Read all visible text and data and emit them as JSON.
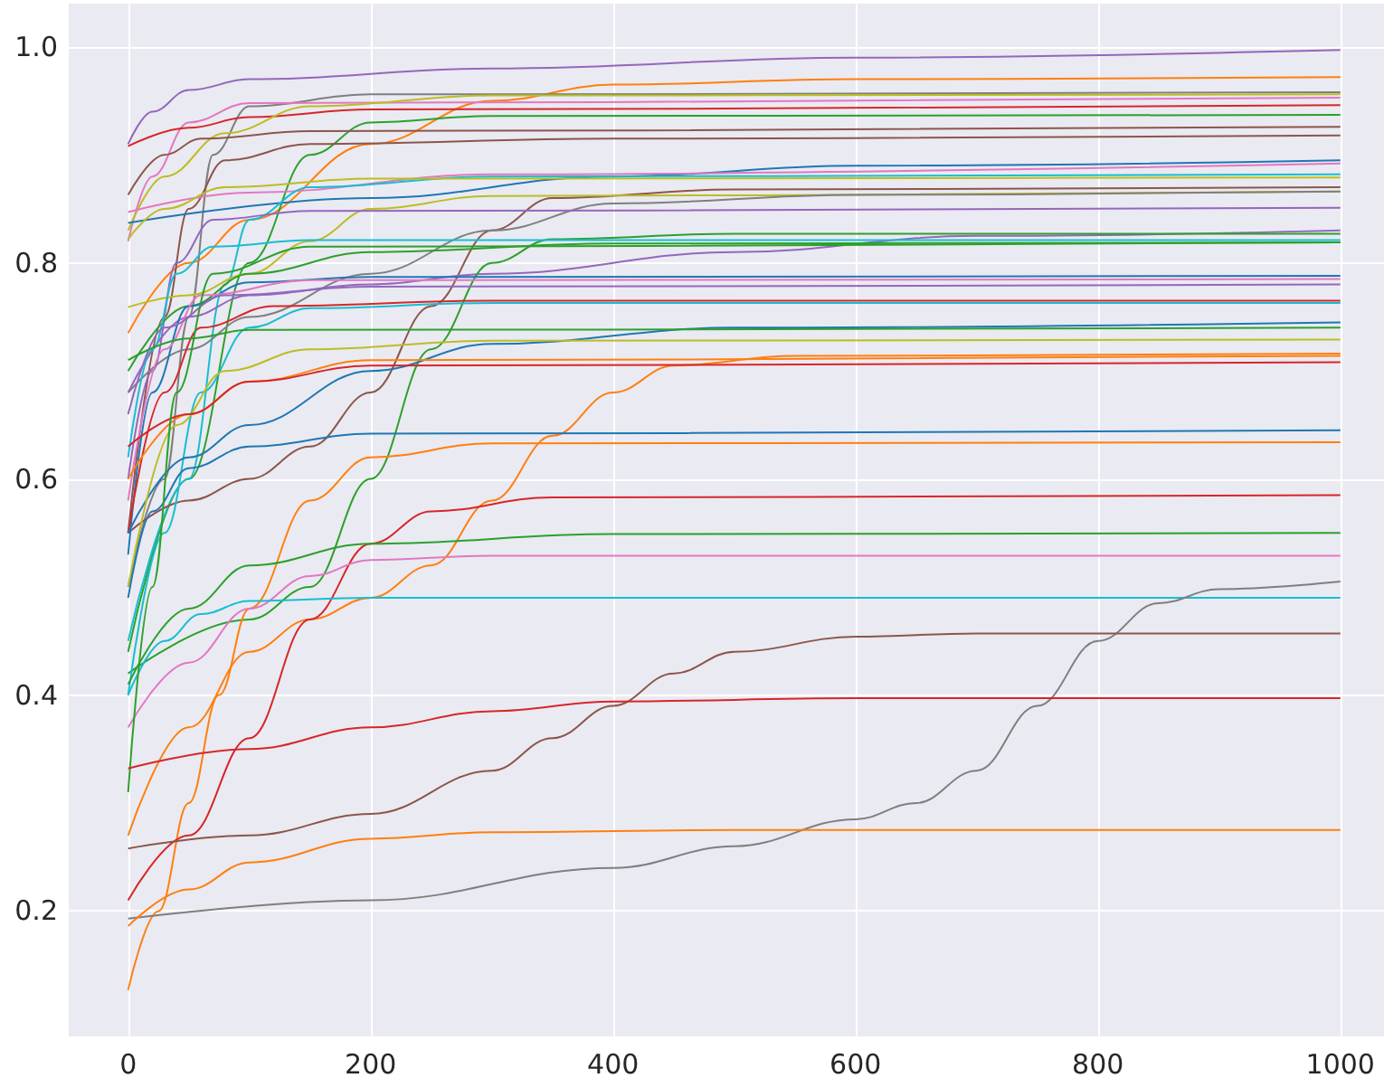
{
  "chart_data": {
    "type": "line",
    "marker": "none",
    "line_style": "solid",
    "grid": true,
    "xlim": [
      -49,
      1036
    ],
    "ylim": [
      0.084,
      1.04
    ],
    "xticks": [
      0,
      200,
      400,
      600,
      800,
      1000
    ],
    "yticks": [
      0.2,
      0.4,
      0.6,
      0.8,
      {
        "value": 1,
        "label": "1.0"
      }
    ],
    "series": [
      {
        "color": "#9467bd",
        "x": [
          0,
          20,
          50,
          100,
          300,
          600,
          1000
        ],
        "values": [
          0.91,
          0.94,
          0.96,
          0.97,
          0.98,
          0.99,
          0.997
        ]
      },
      {
        "color": "#ff7f0e",
        "x": [
          0,
          50,
          100,
          200,
          300,
          400,
          600,
          1000
        ],
        "values": [
          0.735,
          0.8,
          0.84,
          0.91,
          0.95,
          0.965,
          0.97,
          0.972
        ]
      },
      {
        "color": "#7f7f7f",
        "x": [
          0,
          30,
          50,
          70,
          100,
          200,
          1000
        ],
        "values": [
          0.5,
          0.6,
          0.75,
          0.9,
          0.945,
          0.956,
          0.958
        ]
      },
      {
        "color": "#e377c2",
        "x": [
          0,
          20,
          50,
          100,
          1000
        ],
        "values": [
          0.82,
          0.88,
          0.93,
          0.948,
          0.953
        ]
      },
      {
        "color": "#d62728",
        "x": [
          0,
          50,
          100,
          200,
          1000
        ],
        "values": [
          0.908,
          0.925,
          0.935,
          0.942,
          0.946
        ]
      },
      {
        "color": "#bcbd22",
        "x": [
          0,
          30,
          80,
          150,
          300,
          1000
        ],
        "values": [
          0.83,
          0.88,
          0.92,
          0.945,
          0.955,
          0.956
        ]
      },
      {
        "color": "#2ca02c",
        "x": [
          0,
          50,
          100,
          150,
          200,
          300,
          1000
        ],
        "values": [
          0.44,
          0.6,
          0.8,
          0.9,
          0.93,
          0.936,
          0.937
        ]
      },
      {
        "color": "#8c564b",
        "x": [
          0,
          30,
          60,
          150,
          1000
        ],
        "values": [
          0.863,
          0.9,
          0.915,
          0.922,
          0.926
        ]
      },
      {
        "color": "#8c564b",
        "x": [
          0,
          30,
          50,
          80,
          150,
          400,
          1000
        ],
        "values": [
          0.55,
          0.75,
          0.85,
          0.895,
          0.91,
          0.915,
          0.918
        ]
      },
      {
        "color": "#1f77b4",
        "x": [
          0,
          200,
          400,
          600,
          1000
        ],
        "values": [
          0.837,
          0.86,
          0.88,
          0.89,
          0.895
        ]
      },
      {
        "color": "#e377c2",
        "x": [
          0,
          100,
          300,
          1000
        ],
        "values": [
          0.847,
          0.865,
          0.882,
          0.892
        ]
      },
      {
        "color": "#17becf",
        "x": [
          0,
          50,
          80,
          100,
          150,
          300,
          1000
        ],
        "values": [
          0.45,
          0.6,
          0.78,
          0.84,
          0.87,
          0.88,
          0.882
        ]
      },
      {
        "color": "#bcbd22",
        "x": [
          0,
          30,
          80,
          200,
          1000
        ],
        "values": [
          0.822,
          0.85,
          0.87,
          0.878,
          0.879
        ]
      },
      {
        "color": "#8c564b",
        "x": [
          0,
          50,
          100,
          150,
          200,
          250,
          300,
          350,
          500,
          1000
        ],
        "values": [
          0.55,
          0.58,
          0.6,
          0.63,
          0.68,
          0.76,
          0.83,
          0.86,
          0.868,
          0.87
        ]
      },
      {
        "color": "#bcbd22",
        "x": [
          0,
          50,
          100,
          150,
          200,
          300,
          1000
        ],
        "values": [
          0.759,
          0.77,
          0.79,
          0.82,
          0.85,
          0.862,
          0.866
        ]
      },
      {
        "color": "#7f7f7f",
        "x": [
          0,
          50,
          100,
          200,
          300,
          400,
          600,
          1000
        ],
        "values": [
          0.68,
          0.72,
          0.75,
          0.79,
          0.83,
          0.855,
          0.863,
          0.866
        ]
      },
      {
        "color": "#9467bd",
        "x": [
          0,
          20,
          40,
          70,
          150,
          1000
        ],
        "values": [
          0.6,
          0.7,
          0.8,
          0.84,
          0.848,
          0.851
        ]
      },
      {
        "color": "#9467bd",
        "x": [
          0,
          50,
          100,
          200,
          300,
          500,
          700,
          1000
        ],
        "values": [
          0.68,
          0.75,
          0.77,
          0.78,
          0.79,
          0.81,
          0.825,
          0.83
        ]
      },
      {
        "color": "#2ca02c",
        "x": [
          0,
          100,
          150,
          200,
          250,
          300,
          350,
          500,
          1000
        ],
        "values": [
          0.42,
          0.47,
          0.5,
          0.6,
          0.72,
          0.8,
          0.822,
          0.827,
          0.827
        ]
      },
      {
        "color": "#2ca02c",
        "x": [
          0,
          50,
          100,
          200,
          400,
          1000
        ],
        "values": [
          0.7,
          0.76,
          0.79,
          0.81,
          0.818,
          0.819
        ]
      },
      {
        "color": "#17becf",
        "x": [
          0,
          20,
          40,
          70,
          150,
          1000
        ],
        "values": [
          0.62,
          0.72,
          0.79,
          0.815,
          0.821,
          0.821
        ]
      },
      {
        "color": "#1f77b4",
        "x": [
          0,
          20,
          50,
          100,
          200,
          1000
        ],
        "values": [
          0.53,
          0.68,
          0.76,
          0.782,
          0.787,
          0.788
        ]
      },
      {
        "color": "#e377c2",
        "x": [
          0,
          30,
          60,
          150,
          1000
        ],
        "values": [
          0.58,
          0.72,
          0.77,
          0.784,
          0.785
        ]
      },
      {
        "color": "#9467bd",
        "x": [
          0,
          30,
          80,
          200,
          1000
        ],
        "values": [
          0.66,
          0.74,
          0.77,
          0.778,
          0.78
        ]
      },
      {
        "color": "#d62728",
        "x": [
          0,
          30,
          60,
          120,
          300,
          1000
        ],
        "values": [
          0.55,
          0.68,
          0.74,
          0.76,
          0.765,
          0.765
        ]
      },
      {
        "color": "#17becf",
        "x": [
          0,
          30,
          60,
          100,
          150,
          300,
          1000
        ],
        "values": [
          0.4,
          0.55,
          0.68,
          0.74,
          0.758,
          0.763,
          0.763
        ]
      },
      {
        "color": "#1f77b4",
        "x": [
          0,
          50,
          100,
          200,
          300,
          500,
          1000
        ],
        "values": [
          0.55,
          0.62,
          0.65,
          0.7,
          0.725,
          0.74,
          0.745
        ]
      },
      {
        "color": "#2ca02c",
        "x": [
          0,
          50,
          100,
          1000
        ],
        "values": [
          0.71,
          0.73,
          0.738,
          0.74
        ]
      },
      {
        "color": "#bcbd22",
        "x": [
          0,
          40,
          80,
          150,
          300,
          1000
        ],
        "values": [
          0.5,
          0.65,
          0.7,
          0.72,
          0.728,
          0.729
        ]
      },
      {
        "color": "#ff7f0e",
        "x": [
          0,
          50,
          100,
          150,
          200,
          250,
          300,
          350,
          400,
          450,
          550,
          1000
        ],
        "values": [
          0.27,
          0.37,
          0.44,
          0.47,
          0.49,
          0.52,
          0.58,
          0.64,
          0.68,
          0.705,
          0.714,
          0.716
        ]
      },
      {
        "color": "#ff7f0e",
        "x": [
          0,
          50,
          100,
          200,
          1000
        ],
        "values": [
          0.6,
          0.66,
          0.69,
          0.71,
          0.714
        ]
      },
      {
        "color": "#d62728",
        "x": [
          0,
          50,
          100,
          200,
          1000
        ],
        "values": [
          0.63,
          0.66,
          0.69,
          0.705,
          0.708
        ]
      },
      {
        "color": "#1f77b4",
        "x": [
          0,
          20,
          50,
          100,
          200,
          1000
        ],
        "values": [
          0.49,
          0.57,
          0.61,
          0.63,
          0.642,
          0.645
        ]
      },
      {
        "color": "#ff7f0e",
        "x": [
          0,
          25,
          50,
          75,
          100,
          150,
          200,
          300,
          1000
        ],
        "values": [
          0.127,
          0.2,
          0.3,
          0.4,
          0.48,
          0.58,
          0.62,
          0.633,
          0.634
        ]
      },
      {
        "color": "#d62728",
        "x": [
          0,
          50,
          100,
          150,
          200,
          250,
          350,
          1000
        ],
        "values": [
          0.21,
          0.27,
          0.36,
          0.47,
          0.54,
          0.57,
          0.583,
          0.585
        ]
      },
      {
        "color": "#2ca02c",
        "x": [
          0,
          50,
          100,
          200,
          400,
          1000
        ],
        "values": [
          0.41,
          0.48,
          0.52,
          0.54,
          0.549,
          0.55
        ]
      },
      {
        "color": "#e377c2",
        "x": [
          0,
          50,
          100,
          150,
          200,
          300,
          1000
        ],
        "values": [
          0.37,
          0.43,
          0.48,
          0.51,
          0.525,
          0.529,
          0.529
        ]
      },
      {
        "color": "#17becf",
        "x": [
          0,
          30,
          60,
          100,
          200,
          1000
        ],
        "values": [
          0.4,
          0.45,
          0.475,
          0.487,
          0.49,
          0.49
        ]
      },
      {
        "color": "#2ca02c",
        "x": [
          0,
          20,
          40,
          70,
          150,
          1000
        ],
        "values": [
          0.31,
          0.5,
          0.68,
          0.79,
          0.815,
          0.819
        ]
      },
      {
        "color": "#7f7f7f",
        "x": [
          0,
          200,
          400,
          500,
          600,
          650,
          700,
          750,
          800,
          850,
          900,
          1000
        ],
        "values": [
          0.193,
          0.21,
          0.24,
          0.26,
          0.285,
          0.3,
          0.33,
          0.39,
          0.45,
          0.485,
          0.498,
          0.505
        ]
      },
      {
        "color": "#8c564b",
        "x": [
          0,
          100,
          200,
          300,
          350,
          400,
          450,
          500,
          600,
          700,
          1000
        ],
        "values": [
          0.258,
          0.27,
          0.29,
          0.33,
          0.36,
          0.39,
          0.42,
          0.44,
          0.454,
          0.457,
          0.457
        ]
      },
      {
        "color": "#d62728",
        "x": [
          0,
          100,
          200,
          300,
          400,
          600,
          1000
        ],
        "values": [
          0.332,
          0.35,
          0.37,
          0.385,
          0.394,
          0.397,
          0.397
        ]
      },
      {
        "color": "#ff7f0e",
        "x": [
          0,
          50,
          100,
          200,
          300,
          500,
          1000
        ],
        "values": [
          0.186,
          0.22,
          0.245,
          0.267,
          0.273,
          0.275,
          0.275
        ]
      }
    ]
  }
}
